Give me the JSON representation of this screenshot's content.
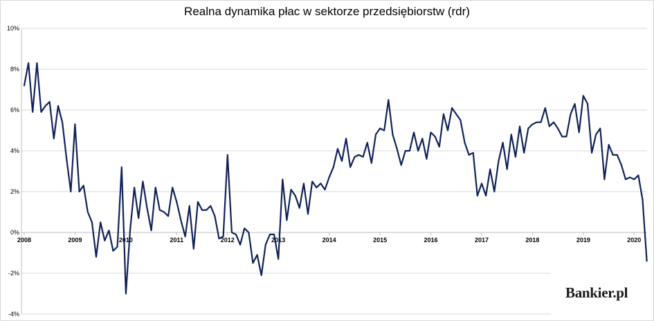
{
  "title": "Realna dynamika płac w sektorze przedsiębiorstw (rdr)",
  "logo": "Bankier.pl",
  "colors": {
    "line": "#0f2158",
    "grid": "#d9d9d9",
    "axis": "#bfbfbf"
  },
  "chart_data": {
    "type": "line",
    "title": "Realna dynamika płac w sektorze przedsiębiorstw (rdr)",
    "xlabel": "",
    "ylabel": "",
    "ylim": [
      -4,
      10
    ],
    "y_ticks": [
      -4,
      -2,
      0,
      2,
      4,
      6,
      8,
      10
    ],
    "y_tick_labels": [
      "-4%",
      "-2%",
      "0%",
      "2%",
      "4%",
      "6%",
      "8%",
      "10%"
    ],
    "x_tick_labels": [
      "2008",
      "2009",
      "2010",
      "2011",
      "2012",
      "2013",
      "2014",
      "2015",
      "2016",
      "2017",
      "2018",
      "2019",
      "2020"
    ],
    "x_start": "2008-01",
    "grid": true,
    "legend": "none",
    "series": [
      {
        "name": "",
        "values": [
          7.2,
          8.3,
          5.9,
          8.3,
          5.9,
          6.2,
          6.4,
          4.6,
          6.2,
          5.4,
          3.6,
          2.0,
          5.3,
          2.0,
          2.3,
          1.0,
          0.5,
          -1.2,
          0.5,
          -0.4,
          0.1,
          -0.9,
          -0.7,
          3.2,
          -3.0,
          0.1,
          2.2,
          0.7,
          2.5,
          1.2,
          0.1,
          2.2,
          1.1,
          1.0,
          0.8,
          2.2,
          1.5,
          0.6,
          -0.2,
          1.3,
          -0.8,
          1.5,
          1.1,
          1.1,
          1.3,
          0.8,
          -0.3,
          -0.2,
          3.8,
          0.0,
          -0.1,
          -0.6,
          0.2,
          0.0,
          -1.5,
          -1.1,
          -2.1,
          -0.6,
          -0.1,
          -0.1,
          -1.3,
          2.6,
          0.6,
          2.1,
          1.8,
          1.2,
          2.4,
          0.9,
          2.5,
          2.2,
          2.4,
          2.1,
          2.7,
          3.2,
          4.1,
          3.5,
          4.6,
          3.2,
          3.7,
          3.8,
          3.7,
          4.4,
          3.4,
          4.8,
          5.1,
          5.0,
          6.5,
          4.8,
          4.1,
          3.3,
          4.0,
          4.0,
          4.9,
          4.0,
          4.6,
          3.6,
          4.9,
          4.7,
          4.2,
          5.8,
          5.0,
          6.1,
          5.8,
          5.5,
          4.4,
          3.8,
          3.9,
          1.8,
          2.4,
          1.8,
          3.1,
          2.0,
          3.5,
          4.4,
          3.1,
          4.8,
          3.7,
          5.2,
          3.9,
          5.1,
          5.3,
          5.4,
          5.4,
          6.1,
          5.2,
          5.4,
          5.1,
          4.7,
          4.7,
          5.8,
          6.3,
          4.9,
          6.7,
          6.3,
          3.9,
          4.8,
          5.1,
          2.6,
          4.3,
          3.8,
          3.8,
          3.3,
          2.6,
          2.7,
          2.6,
          2.8,
          1.6,
          -1.4
        ]
      }
    ]
  }
}
